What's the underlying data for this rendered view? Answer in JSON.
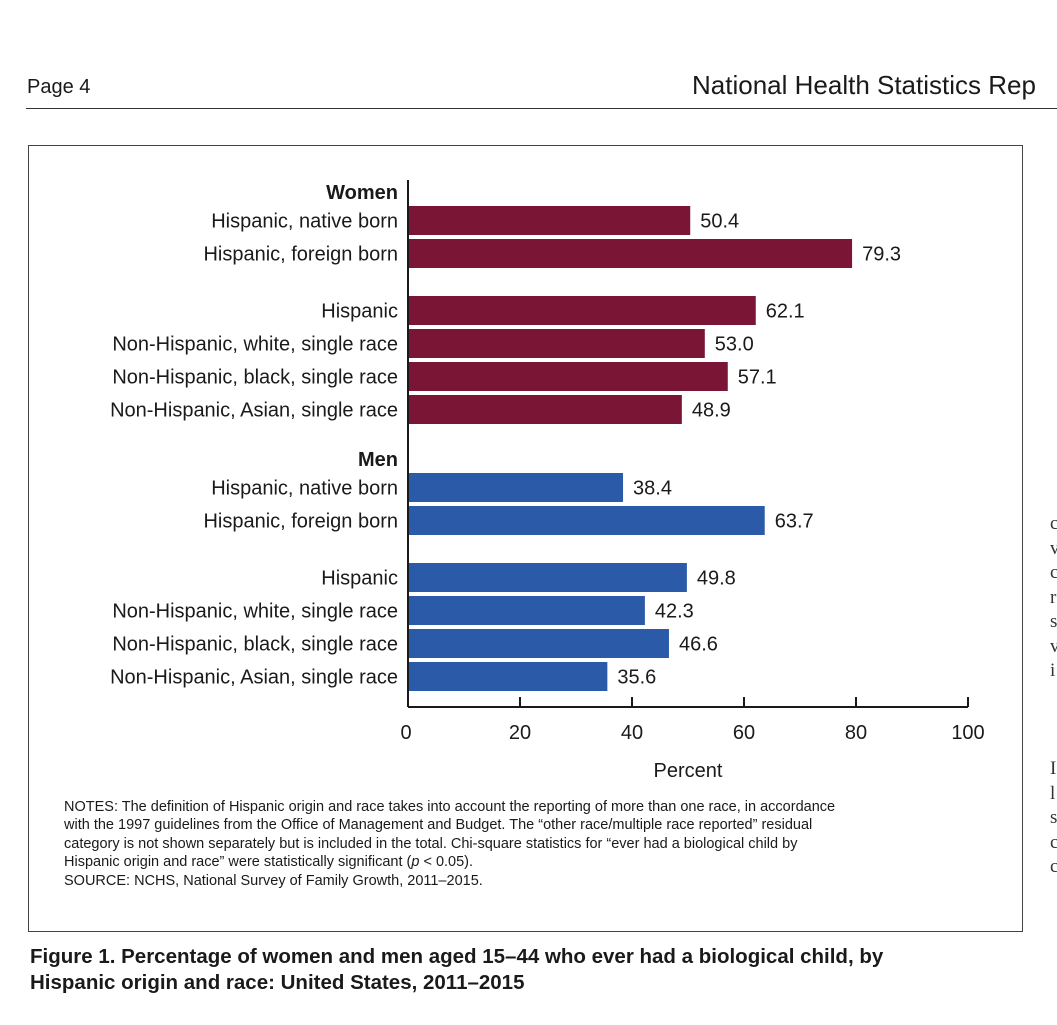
{
  "header": {
    "page_label": "Page 4",
    "series_title": "National Health Statistics Rep"
  },
  "chart_data": {
    "type": "bar",
    "orientation": "horizontal",
    "xlabel": "Percent",
    "xlim": [
      0,
      100
    ],
    "xticks": [
      0,
      20,
      40,
      60,
      80,
      100
    ],
    "grid": false,
    "data_labels": true,
    "groups": [
      {
        "name": "Women",
        "color": "#7a1535",
        "bars": [
          {
            "label": "Hispanic, native born",
            "value": 50.4
          },
          {
            "label": "Hispanic, foreign born",
            "value": 79.3
          },
          {
            "label": "Hispanic",
            "value": 62.1
          },
          {
            "label": "Non-Hispanic, white, single race",
            "value": 53.0
          },
          {
            "label": "Non-Hispanic, black, single race",
            "value": 57.1
          },
          {
            "label": "Non-Hispanic, Asian, single race",
            "value": 48.9
          }
        ]
      },
      {
        "name": "Men",
        "color": "#2a5aa8",
        "bars": [
          {
            "label": "Hispanic, native born",
            "value": 38.4
          },
          {
            "label": "Hispanic, foreign born",
            "value": 63.7
          },
          {
            "label": "Hispanic",
            "value": 49.8
          },
          {
            "label": "Non-Hispanic, white, single race",
            "value": 42.3
          },
          {
            "label": "Non-Hispanic, black, single race",
            "value": 46.6
          },
          {
            "label": "Non-Hispanic, Asian, single race",
            "value": 35.6
          }
        ]
      }
    ]
  },
  "notes": {
    "lines": [
      "NOTES: The definition of Hispanic origin and race takes into account the reporting of more than one race, in accordance",
      "with the 1997 guidelines from the Office of Management and Budget. The “other race/multiple race reported” residual",
      "category is not shown separately but is included in the total. Chi-square statistics for “ever had a biological child by",
      "Hispanic origin and race” were statistically significant (p < 0.05).",
      "SOURCE: NCHS, National Survey of Family Growth, 2011–2015."
    ]
  },
  "caption": {
    "line1": "Figure 1. Percentage of women and men aged 15–44 who ever had a biological child, by",
    "line2": "Hispanic origin and race: United States, 2011–2015"
  },
  "cut_text": {
    "lines": [
      "c",
      "v",
      "c",
      "r",
      "s",
      "v",
      "i",
      "",
      "",
      "",
      "I",
      "l",
      "s",
      "c",
      "c"
    ]
  }
}
